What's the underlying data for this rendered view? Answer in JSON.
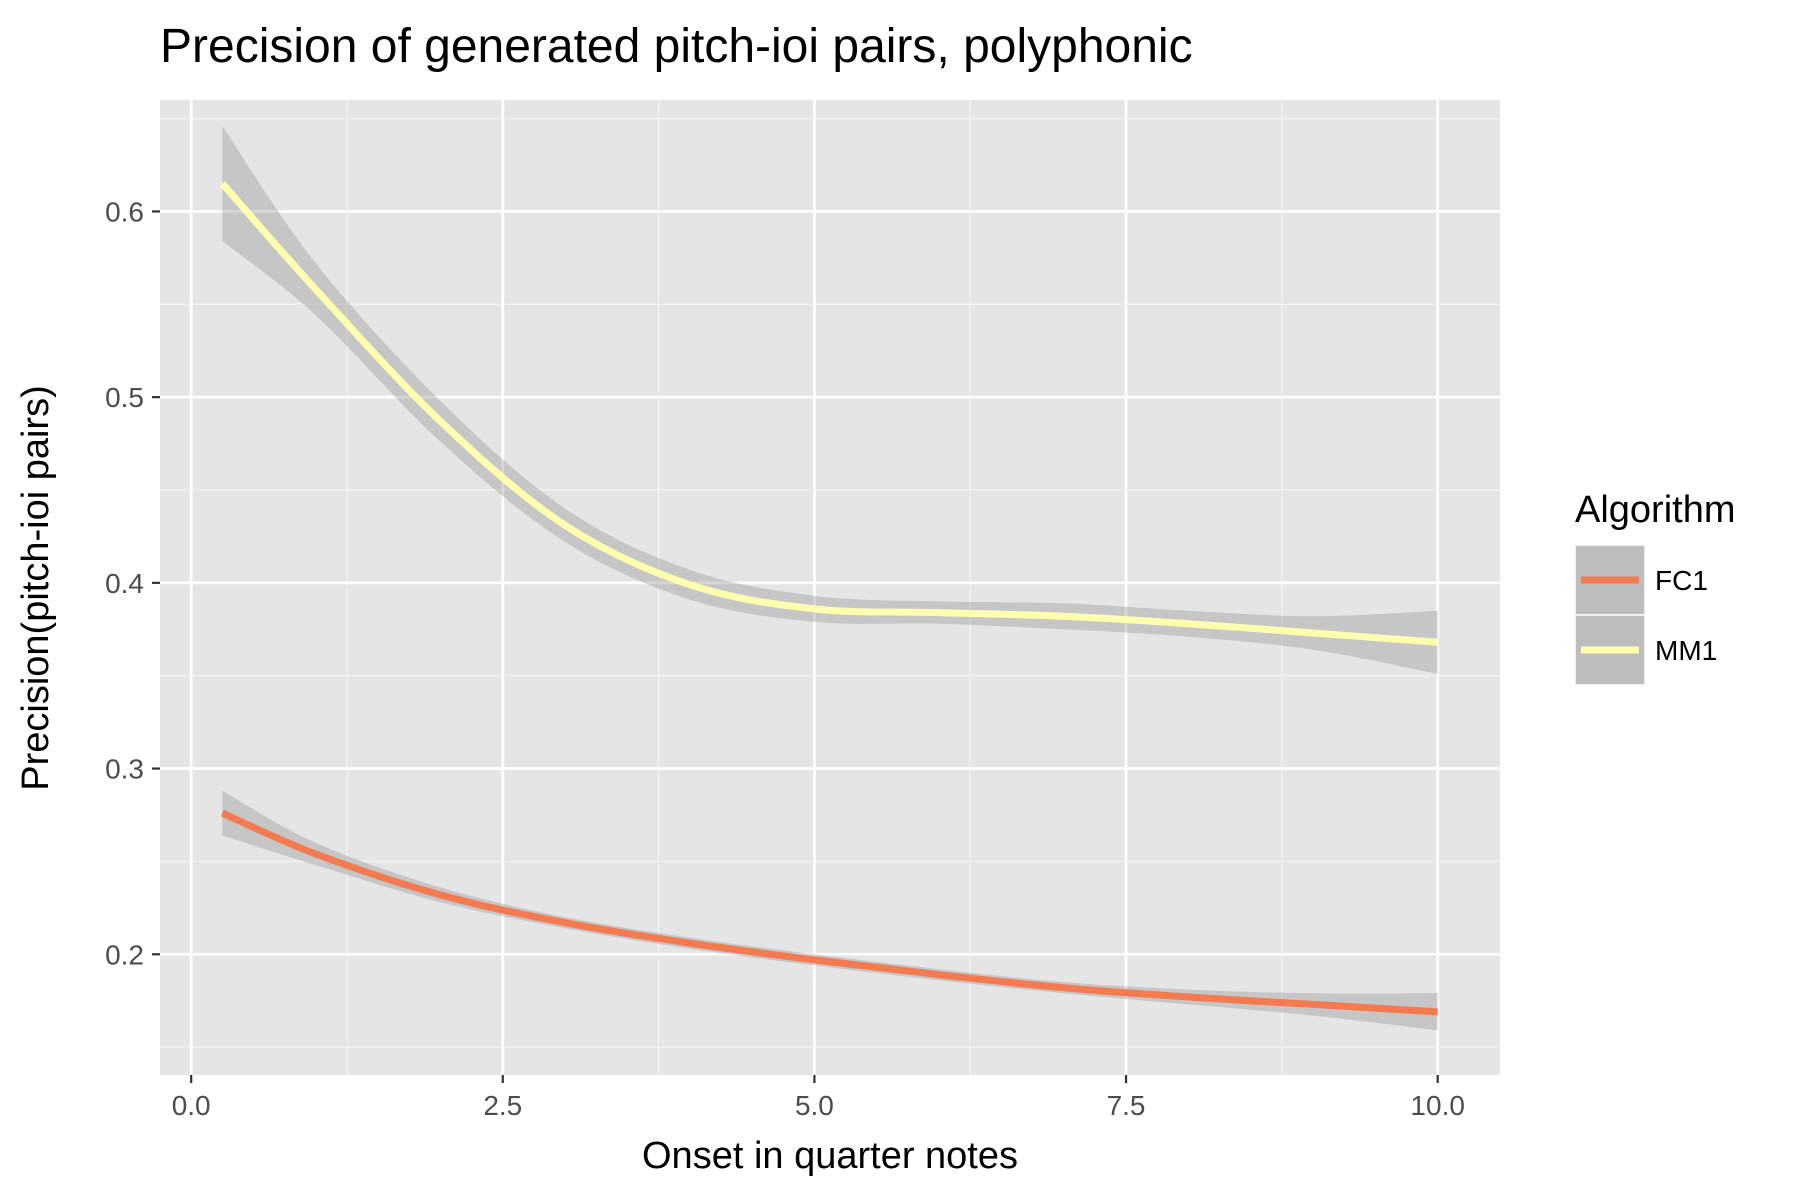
{
  "chart_data": {
    "type": "line",
    "title": "Precision of generated pitch-ioi pairs, polyphonic",
    "xlabel": "Onset in quarter notes",
    "ylabel": "Precision(pitch-ioi pairs)",
    "xlim": [
      -0.25,
      10.5
    ],
    "ylim": [
      0.135,
      0.66
    ],
    "x_ticks": [
      0,
      2.5,
      5,
      7.5,
      10
    ],
    "x_tick_labels": [
      "0.0",
      "2.5",
      "5.0",
      "7.5",
      "10.0"
    ],
    "y_ticks": [
      0.2,
      0.3,
      0.4,
      0.5,
      0.6
    ],
    "y_tick_labels": [
      "0.2",
      "0.3",
      "0.4",
      "0.5",
      "0.6"
    ],
    "grid": true,
    "legend": {
      "title": "Algorithm",
      "position": "right"
    },
    "series": [
      {
        "name": "FC1",
        "color": "#f47a50",
        "x": [
          0.25,
          1,
          2,
          3,
          4,
          5,
          6,
          7,
          8,
          9,
          10
        ],
        "y": [
          0.276,
          0.254,
          0.232,
          0.217,
          0.206,
          0.197,
          0.189,
          0.182,
          0.177,
          0.173,
          0.169
        ],
        "ci_half_width": [
          0.012,
          0.006,
          0.004,
          0.003,
          0.003,
          0.003,
          0.003,
          0.003,
          0.004,
          0.006,
          0.01
        ]
      },
      {
        "name": "MM1",
        "color": "#ffffb0",
        "x": [
          0.25,
          1,
          2,
          3,
          4,
          5,
          6,
          7,
          8,
          9,
          10
        ],
        "y": [
          0.615,
          0.558,
          0.487,
          0.431,
          0.399,
          0.386,
          0.384,
          0.382,
          0.378,
          0.373,
          0.368
        ],
        "ci_half_width": [
          0.031,
          0.014,
          0.011,
          0.009,
          0.008,
          0.007,
          0.006,
          0.007,
          0.007,
          0.009,
          0.017
        ]
      }
    ]
  }
}
